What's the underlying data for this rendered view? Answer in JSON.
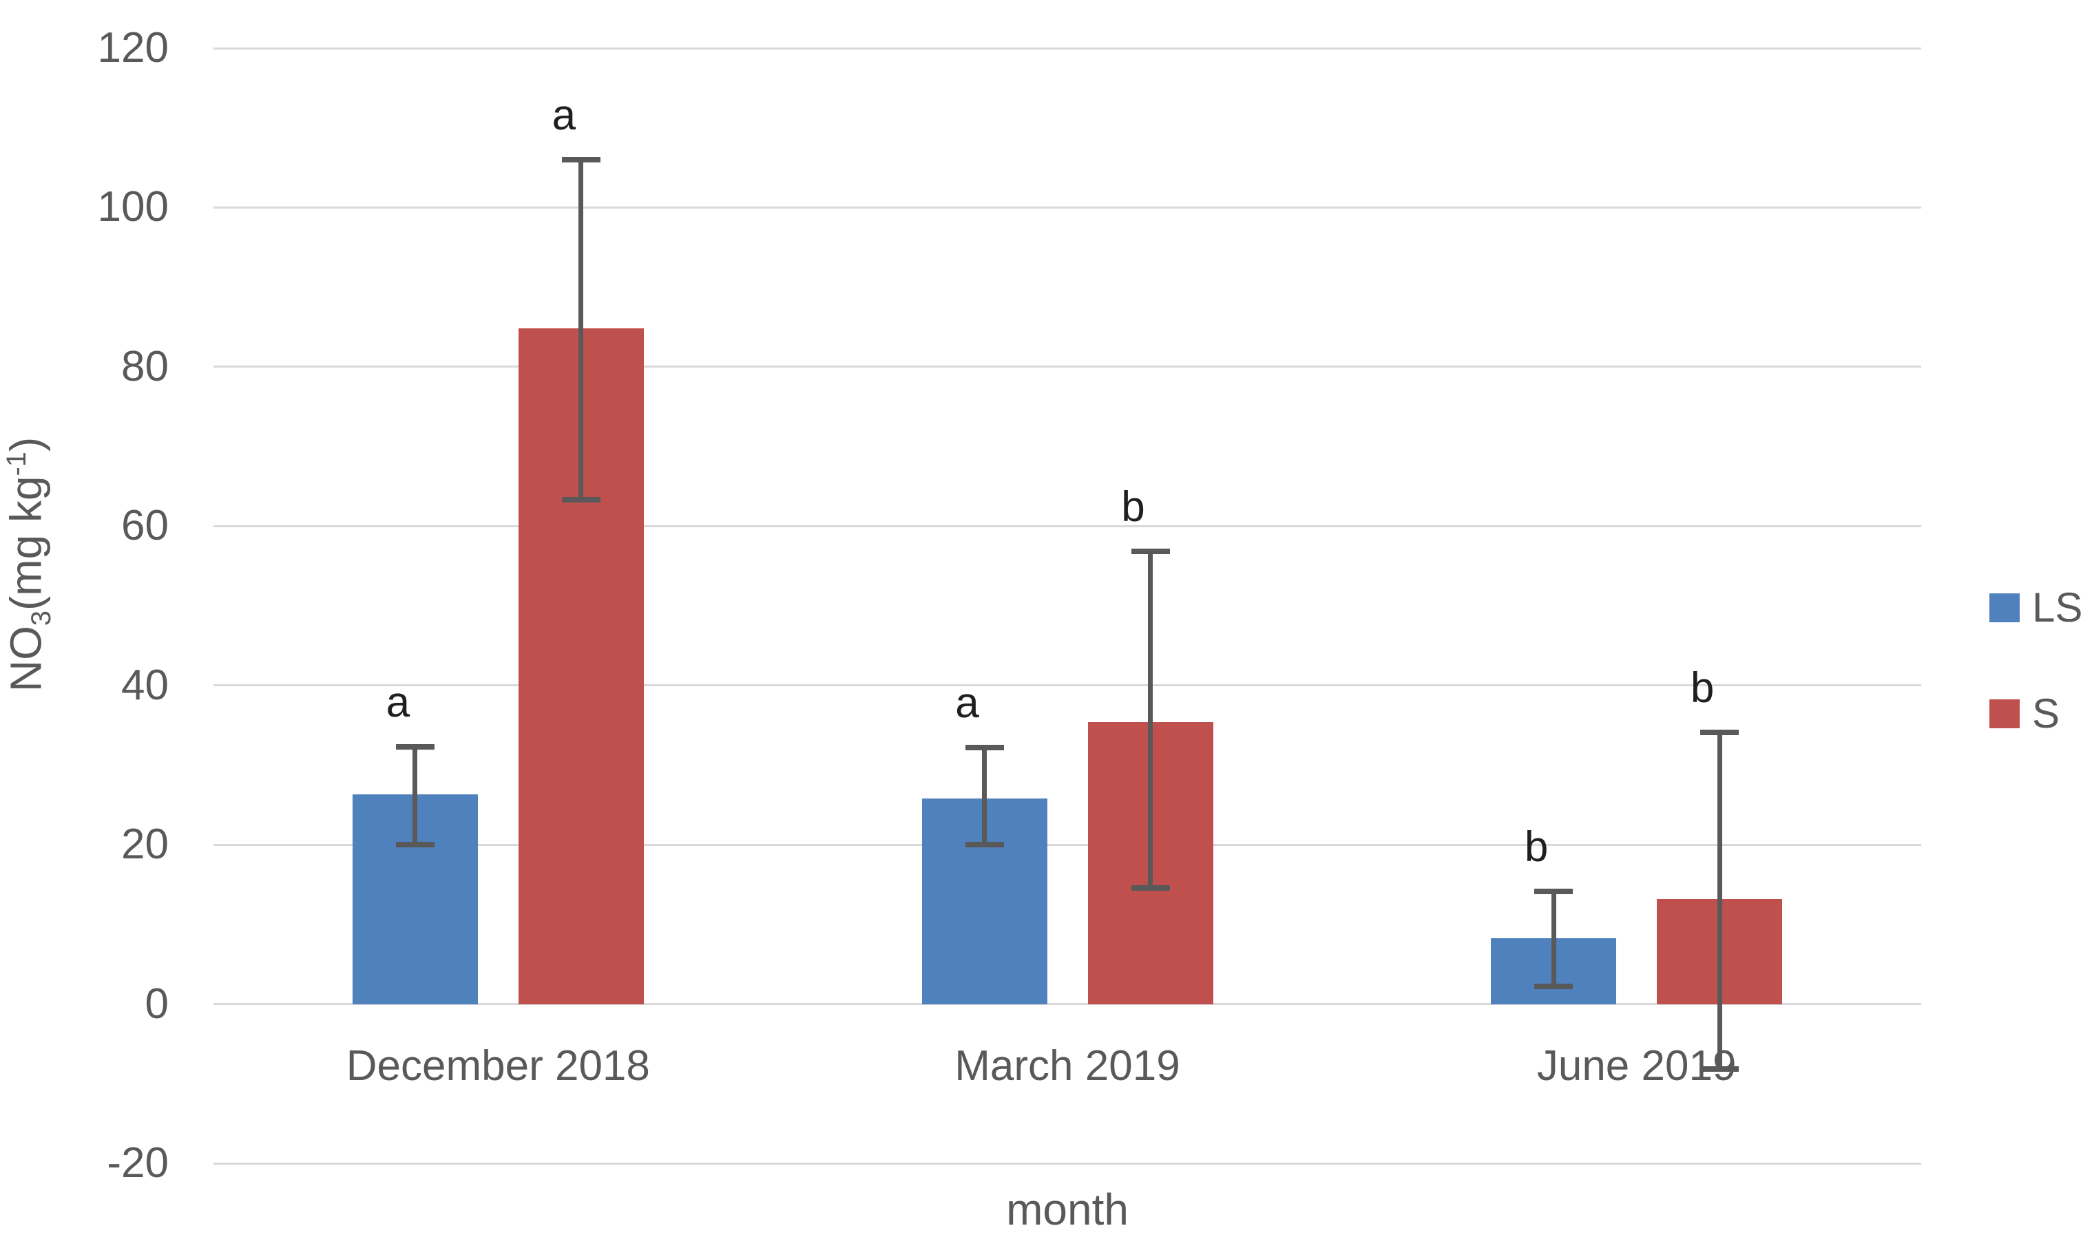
{
  "chart_data": {
    "type": "bar",
    "title": "",
    "categories": [
      "December 2018",
      "March 2019",
      "June 2019"
    ],
    "series": [
      {
        "name": "LS",
        "color": "#4F81BD",
        "values": [
          26.3,
          25.8,
          8.3
        ],
        "error_low": [
          20.0,
          20.0,
          2.2
        ],
        "error_high": [
          32.3,
          32.2,
          14.1
        ],
        "sig_letters": [
          "a",
          "a",
          "b"
        ]
      },
      {
        "name": "S",
        "color": "#C0504D",
        "values": [
          84.8,
          35.4,
          13.2
        ],
        "error_low": [
          63.3,
          14.6,
          -8.2
        ],
        "error_high": [
          106.0,
          56.8,
          34.1
        ],
        "sig_letters": [
          "a",
          "b",
          "b"
        ]
      }
    ],
    "xlabel": "month",
    "ylabel": {
      "prefix": "NO",
      "subscript": "3",
      "middle": "(mg kg",
      "superscript": "-1",
      "suffix": ")"
    },
    "ylim": [
      -20,
      120
    ],
    "yticks": [
      120,
      100,
      80,
      60,
      40,
      20,
      0,
      -20
    ],
    "grid": true,
    "legend_position": "right",
    "colors": {
      "gridline": "#D9D9D9",
      "error_bar": "#595959",
      "tick_text": "#595959",
      "letter_text": "#1F1F1F",
      "background": "#FFFFFF"
    }
  }
}
